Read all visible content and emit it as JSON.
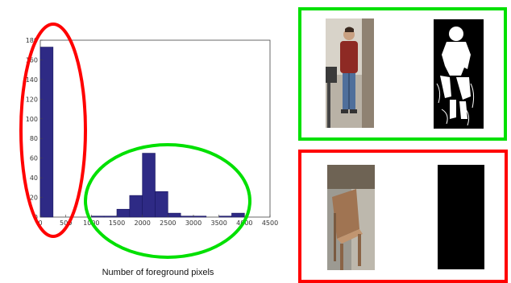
{
  "chart_data": {
    "type": "bar",
    "xlabel": "Number of foreground pixels",
    "ylabel": "",
    "xlim": [
      0,
      4500
    ],
    "ylim": [
      0,
      180
    ],
    "bin_width": 250,
    "bins": [
      {
        "x0": 0,
        "x1": 250,
        "count": 173
      },
      {
        "x0": 250,
        "x1": 500,
        "count": 0
      },
      {
        "x0": 500,
        "x1": 750,
        "count": 0
      },
      {
        "x0": 750,
        "x1": 1000,
        "count": 0
      },
      {
        "x0": 1000,
        "x1": 1250,
        "count": 1
      },
      {
        "x0": 1250,
        "x1": 1500,
        "count": 1
      },
      {
        "x0": 1500,
        "x1": 1750,
        "count": 8
      },
      {
        "x0": 1750,
        "x1": 2000,
        "count": 22
      },
      {
        "x0": 2000,
        "x1": 2250,
        "count": 65
      },
      {
        "x0": 2250,
        "x1": 2500,
        "count": 26
      },
      {
        "x0": 2500,
        "x1": 2750,
        "count": 4
      },
      {
        "x0": 2750,
        "x1": 3000,
        "count": 1
      },
      {
        "x0": 3000,
        "x1": 3250,
        "count": 1
      },
      {
        "x0": 3250,
        "x1": 3500,
        "count": 0
      },
      {
        "x0": 3500,
        "x1": 3750,
        "count": 1
      },
      {
        "x0": 3750,
        "x1": 4000,
        "count": 4
      }
    ],
    "xticks": [
      "0",
      "500",
      "1000",
      "1500",
      "2000",
      "2500",
      "3000",
      "3500",
      "4000",
      "4500"
    ],
    "yticks": [
      "0",
      "20",
      "40",
      "60",
      "80",
      "100",
      "120",
      "140",
      "160",
      "180"
    ],
    "grid": false
  },
  "annotations": {
    "low_ellipse_color": "#ff0000",
    "high_ellipse_color": "#00e000"
  },
  "colors": {
    "bar_fill": "#2e2a85",
    "bar_edge": "#1a1860",
    "green": "#00e000",
    "red": "#ff0000"
  },
  "panels": {
    "top": {
      "frame": "green",
      "left": "person-crop-photo",
      "right": "foreground-mask-person"
    },
    "bottom": {
      "frame": "red",
      "left": "chair-crop-photo",
      "right": "foreground-mask-empty"
    }
  }
}
